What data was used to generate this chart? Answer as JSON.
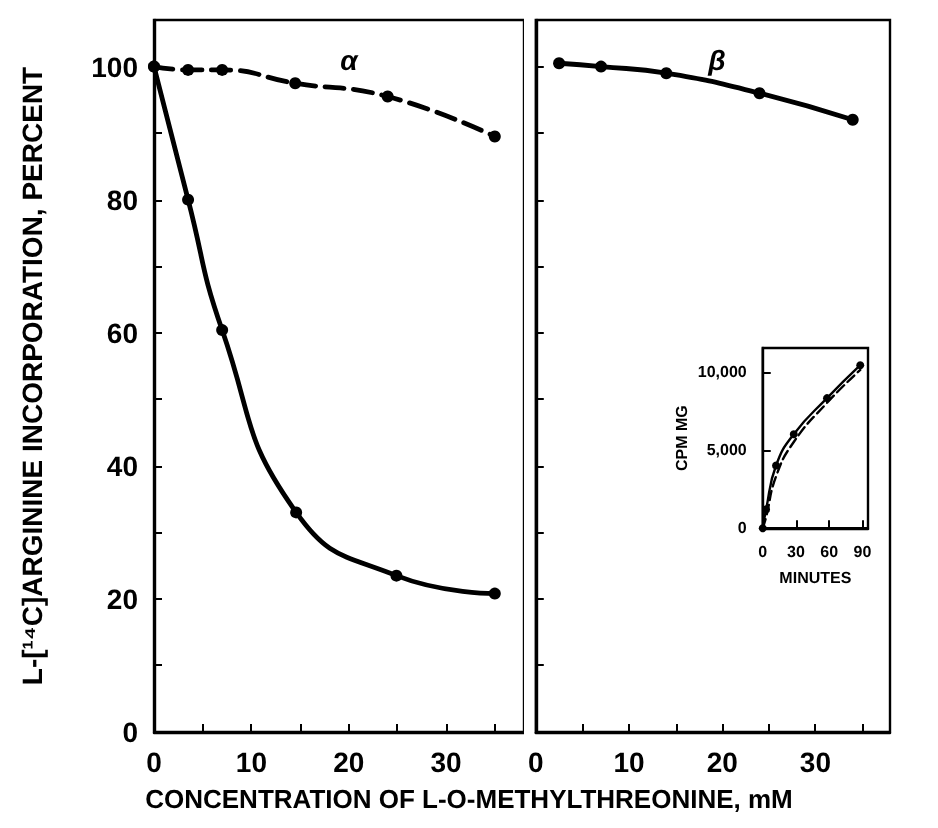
{
  "chart_data": [
    {
      "type": "line",
      "title": "α",
      "ylabel": "L-[¹⁴C]ARGININE INCORPORATION, PERCENT",
      "xlabel": "CONCENTRATION OF L-O-METHYLTHREONINE, mM",
      "xlim": [
        0,
        38
      ],
      "xticks": [
        0,
        {
          "value": 5,
          "label": null
        },
        10,
        {
          "value": 15,
          "label": null
        },
        20,
        {
          "value": 25,
          "label": null
        },
        30,
        {
          "value": 35,
          "label": null
        }
      ],
      "ylim": [
        0,
        107
      ],
      "yticks": [
        0,
        {
          "value": 10,
          "label": null
        },
        20,
        {
          "value": 30,
          "label": null
        },
        40,
        {
          "value": 50,
          "label": null
        },
        60,
        {
          "value": 70,
          "label": null
        },
        80,
        {
          "value": 90,
          "label": null
        },
        100
      ],
      "grid": false,
      "series": [
        {
          "color": "#000000",
          "x": [
            0,
            3.5,
            7,
            14.6,
            24.9,
            35
          ],
          "values": [
            100,
            80,
            60.4,
            33,
            23.5,
            20.8
          ],
          "marker": "circle",
          "line_style": "solid"
        },
        {
          "color": "#000000",
          "x": [
            0,
            3.5,
            7,
            14.5,
            24,
            35
          ],
          "values": [
            100,
            99.5,
            99.5,
            97.5,
            95.5,
            89.5
          ],
          "marker": "circle",
          "line_style": "dashed"
        }
      ]
    },
    {
      "type": "line",
      "title": "β",
      "xlim": [
        0,
        38
      ],
      "xticks": [
        0,
        {
          "value": 5,
          "label": null
        },
        10,
        {
          "value": 15,
          "label": null
        },
        20,
        {
          "value": 25,
          "label": null
        },
        30,
        {
          "value": 35,
          "label": null
        }
      ],
      "ylim": [
        0,
        107
      ],
      "yticks": [
        0,
        {
          "value": 10,
          "label": null
        },
        20,
        {
          "value": 30,
          "label": null
        },
        40,
        {
          "value": 50,
          "label": null
        },
        60,
        {
          "value": 70,
          "label": null
        },
        80,
        {
          "value": 90,
          "label": null
        },
        100
      ],
      "tick_labels": "x",
      "grid": false,
      "series": [
        {
          "color": "#000000",
          "x": [
            2.5,
            7,
            14,
            24,
            34
          ],
          "values": [
            100.5,
            100,
            99,
            96,
            92
          ],
          "marker": "circle",
          "line_style": "solid"
        }
      ]
    },
    {
      "type": "line",
      "ylabel": "CPM MG",
      "xlabel": "MINUTES",
      "xlim": [
        0,
        95
      ],
      "xticks": [
        0,
        30,
        60,
        90
      ],
      "ylim": [
        0,
        11500
      ],
      "yticks": [
        0,
        {
          "value": 5000,
          "label": "5,000"
        },
        {
          "value": 10000,
          "label": "10,000"
        }
      ],
      "grid": false,
      "series": [
        {
          "color": "#000000",
          "x": [
            0,
            3,
            12,
            28,
            58,
            88
          ],
          "values": [
            0,
            1200,
            4000,
            6000,
            8300,
            10400
          ],
          "marker": "circle",
          "line_style": "solid"
        },
        {
          "color": "#000000",
          "x": [
            0,
            3,
            12,
            28,
            58,
            88
          ],
          "values": [
            0,
            700,
            3300,
            5500,
            8000,
            10100
          ],
          "marker": "none",
          "line_style": "dashed"
        }
      ]
    }
  ]
}
